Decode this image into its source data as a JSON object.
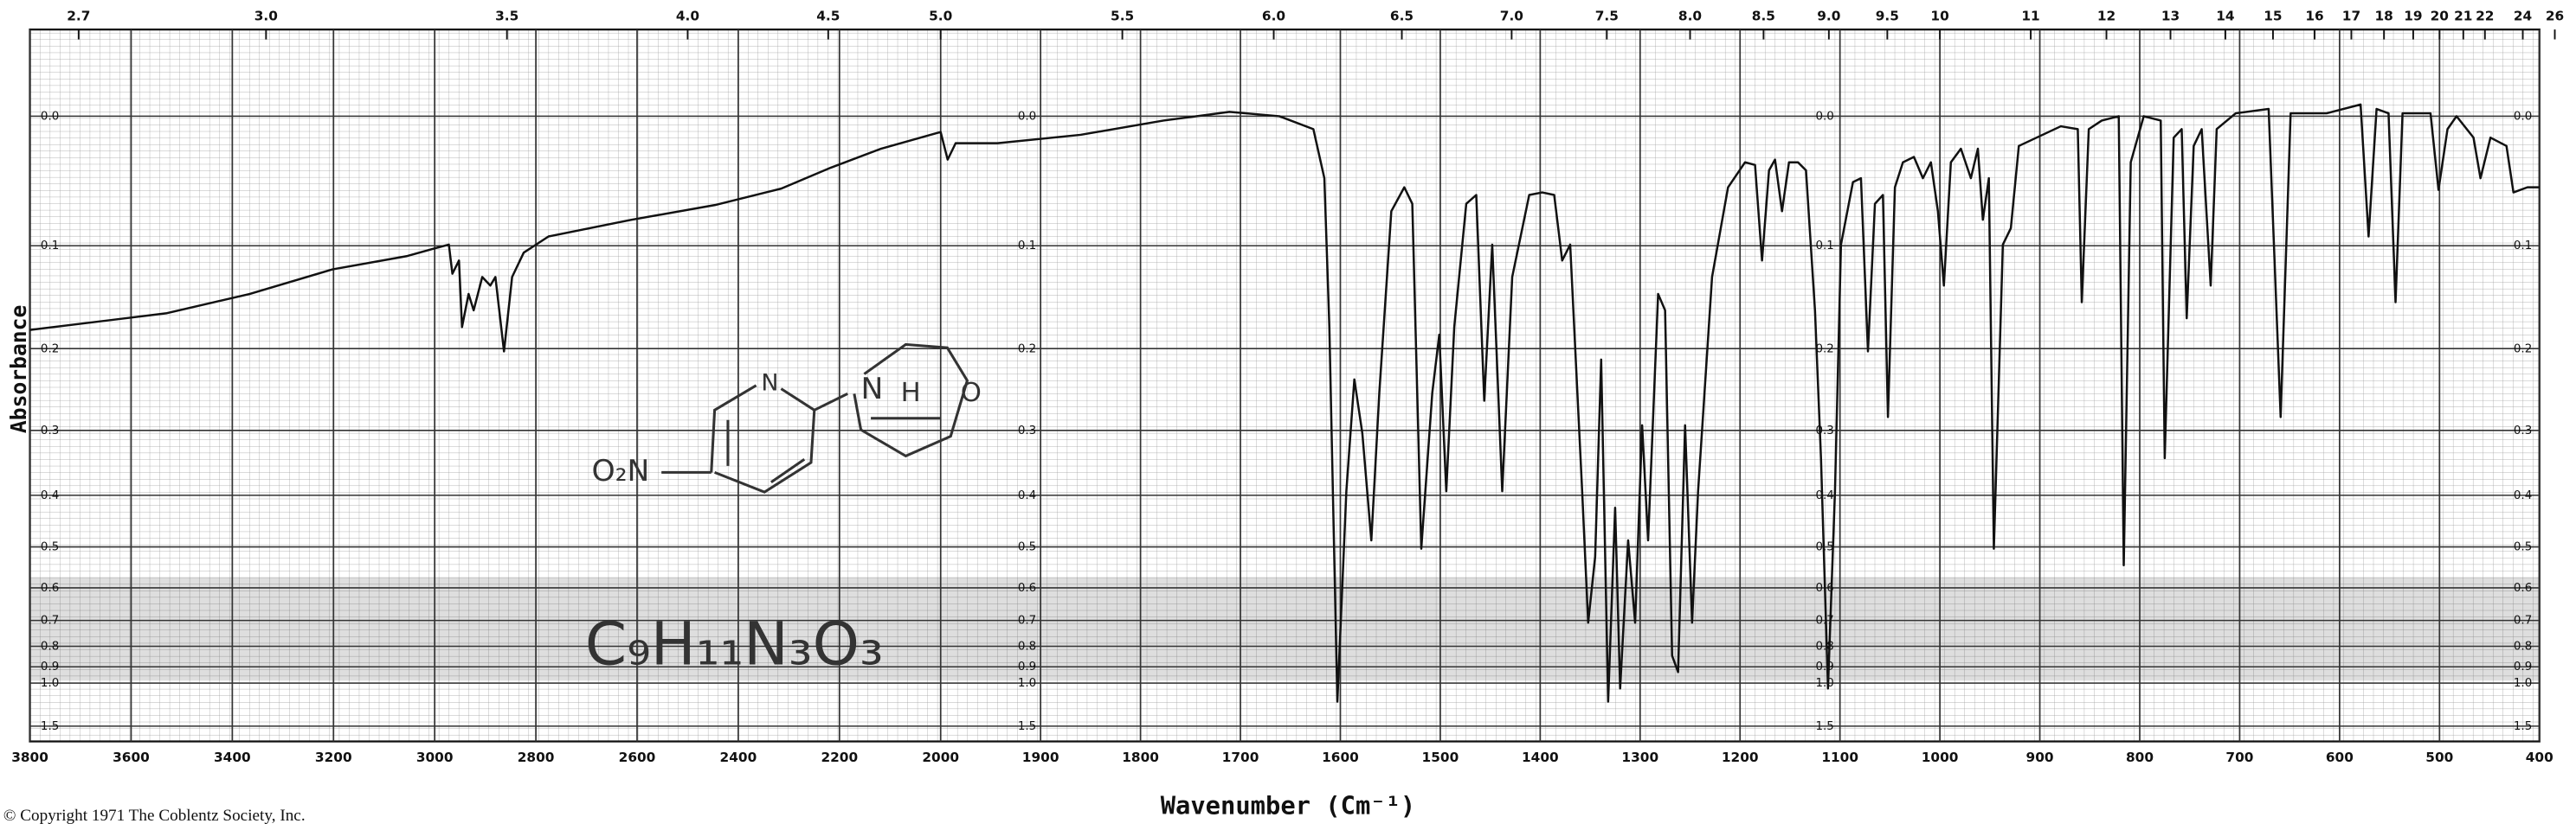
{
  "chart_data": {
    "type": "line",
    "xlabel": "Wavenumber (Cm⁻¹)",
    "ylabel": "Absorbance",
    "copyright": "© Copyright 1971  The Coblentz Society, Inc.",
    "formula": "C₉H₁₁N₃O₃",
    "structure_labels": [
      "O₂N",
      "N",
      "N",
      "H",
      "O"
    ],
    "color": "#111111",
    "xlim": [
      3800,
      400
    ],
    "x_break": 2000,
    "yscale": "absorbance",
    "ylim": [
      2,
      -0.05
    ],
    "grid": true,
    "xticks": [
      3800,
      3600,
      3400,
      3200,
      3000,
      2800,
      2600,
      2400,
      2200,
      2000,
      1900,
      1800,
      1700,
      1600,
      1500,
      1400,
      1300,
      1200,
      1100,
      1000,
      900,
      800,
      700,
      600,
      500,
      400
    ],
    "yticks": [
      {
        "value": 0,
        "label": "0.0"
      },
      0.1,
      0.2,
      0.3,
      0.4,
      0.5,
      0.6,
      0.7,
      0.8,
      0.9,
      {
        "value": 1,
        "label": "1.0"
      },
      1.5
    ],
    "x2_unit": "micron",
    "x2ticks": [
      2.7,
      {
        "value": 3,
        "label": "3.0"
      },
      3.5,
      {
        "value": 4,
        "label": "4.0"
      },
      4.5,
      {
        "value": 5,
        "label": "5.0"
      },
      5.5,
      {
        "value": 6,
        "label": "6.0"
      },
      6.5,
      {
        "value": 7,
        "label": "7.0"
      },
      7.5,
      {
        "value": 8,
        "label": "8.0"
      },
      8.5,
      {
        "value": 9,
        "label": "9.0"
      },
      9.5,
      10,
      11,
      12,
      13,
      14,
      15,
      16,
      17,
      18,
      19,
      20,
      21,
      22,
      24,
      26
    ],
    "x": [
      3800,
      3531,
      3366,
      3202,
      3054,
      2998,
      2972,
      2965,
      2952,
      2946,
      2933,
      2923,
      2906,
      2890,
      2880,
      2863,
      2847,
      2824,
      2775,
      2611,
      2446,
      2315,
      2217,
      2118,
      2020,
      2000,
      1993,
      1985,
      1943,
      1860,
      1777,
      1711,
      1661,
      1627,
      1616,
      1611,
      1603,
      1594,
      1586,
      1578,
      1569,
      1561,
      1549,
      1536,
      1528,
      1519,
      1508,
      1501,
      1494,
      1486,
      1474,
      1464,
      1456,
      1448,
      1438,
      1428,
      1411,
      1398,
      1386,
      1378,
      1370,
      1358,
      1352,
      1345,
      1339,
      1332,
      1325,
      1320,
      1312,
      1305,
      1298,
      1292,
      1282,
      1275,
      1268,
      1262,
      1255,
      1248,
      1242,
      1228,
      1212,
      1195,
      1185,
      1178,
      1171,
      1165,
      1158,
      1151,
      1142,
      1134,
      1125,
      1119,
      1112,
      1105,
      1099,
      1087,
      1079,
      1072,
      1065,
      1057,
      1052,
      1045,
      1037,
      1026,
      1017,
      1009,
      1002,
      996,
      989,
      979,
      969,
      962,
      957,
      951,
      946,
      937,
      929,
      921,
      879,
      862,
      858,
      851,
      838,
      821,
      816,
      809,
      796,
      779,
      775,
      766,
      758,
      753,
      746,
      738,
      729,
      723,
      704,
      671,
      659,
      649,
      613,
      579,
      571,
      563,
      551,
      544,
      537,
      509,
      501,
      492,
      483,
      466,
      459,
      449,
      433,
      426,
      412,
      400
    ],
    "values": [
      0.18,
      0.163,
      0.144,
      0.121,
      0.109,
      0.102,
      0.099,
      0.125,
      0.113,
      0.177,
      0.144,
      0.16,
      0.128,
      0.136,
      0.128,
      0.203,
      0.128,
      0.106,
      0.092,
      0.078,
      0.066,
      0.053,
      0.037,
      0.023,
      0.013,
      0.011,
      0.031,
      0.019,
      0.019,
      0.013,
      0.003,
      -0.003,
      0,
      0.009,
      0.045,
      0.177,
      1.152,
      0.393,
      0.235,
      0.304,
      0.486,
      0.251,
      0.071,
      0.052,
      0.065,
      0.504,
      0.251,
      0.185,
      0.393,
      0.177,
      0.065,
      0.058,
      0.261,
      0.099,
      0.393,
      0.128,
      0.058,
      0.056,
      0.058,
      0.113,
      0.099,
      0.393,
      0.708,
      0.522,
      0.212,
      1.152,
      0.422,
      1.039,
      0.486,
      0.708,
      0.293,
      0.486,
      0.144,
      0.16,
      0.843,
      0.93,
      0.293,
      0.708,
      0.393,
      0.128,
      0.052,
      0.033,
      0.035,
      0.113,
      0.039,
      0.031,
      0.071,
      0.033,
      0.033,
      0.039,
      0.16,
      0.34,
      1.039,
      0.393,
      0.099,
      0.048,
      0.045,
      0.203,
      0.065,
      0.058,
      0.282,
      0.052,
      0.033,
      0.029,
      0.045,
      0.033,
      0.071,
      0.136,
      0.033,
      0.023,
      0.045,
      0.023,
      0.078,
      0.045,
      0.504,
      0.099,
      0.085,
      0.021,
      0.007,
      0.009,
      0.152,
      0.009,
      0.003,
      0,
      0.542,
      0.033,
      0,
      0.003,
      0.34,
      0.015,
      0.009,
      0.168,
      0.021,
      0.009,
      0.136,
      0.009,
      -0.002,
      -0.005,
      0.282,
      -0.002,
      -0.002,
      -0.008,
      0.092,
      -0.005,
      -0.002,
      0.152,
      -0.002,
      -0.002,
      0.054,
      0.009,
      0,
      0.015,
      0.045,
      0.015,
      0.021,
      0.056,
      0.052,
      0.052
    ]
  }
}
